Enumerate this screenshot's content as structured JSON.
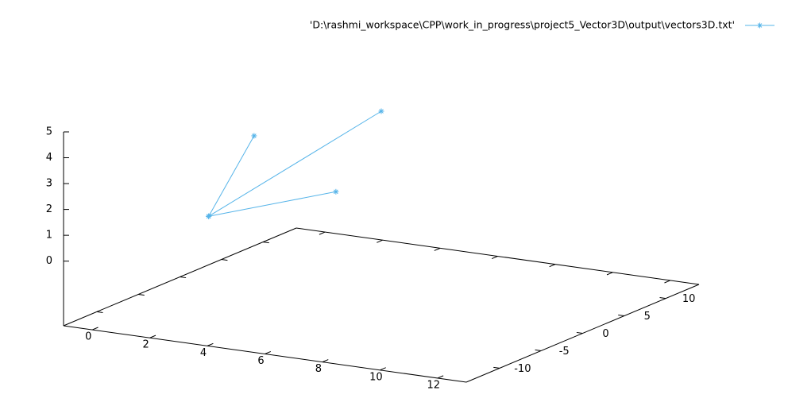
{
  "chart_data": {
    "type": "line3d",
    "xlim": [
      -1,
      13
    ],
    "ylim": [
      -14,
      14
    ],
    "zlim": [
      -2.5,
      5
    ],
    "xticks": [
      0,
      2,
      4,
      6,
      8,
      10,
      12
    ],
    "yticks": [
      -10,
      -5,
      0,
      5,
      10
    ],
    "zticks": [
      0,
      1,
      2,
      3,
      4,
      5
    ],
    "legend": "top-right",
    "series": [
      {
        "name": "'D:\\rashmi_workspace\\CPP\\work_in_progress\\project5_Vector3D\\output\\vectors3D.txt'",
        "color": "#56b4e9",
        "x": [
          0,
          1,
          null,
          0,
          6,
          null,
          0,
          5
        ],
        "y": [
          0,
          2,
          null,
          0,
          0,
          null,
          0,
          -2
        ],
        "z": [
          0,
          3,
          null,
          0,
          5,
          null,
          0,
          2
        ]
      }
    ]
  }
}
